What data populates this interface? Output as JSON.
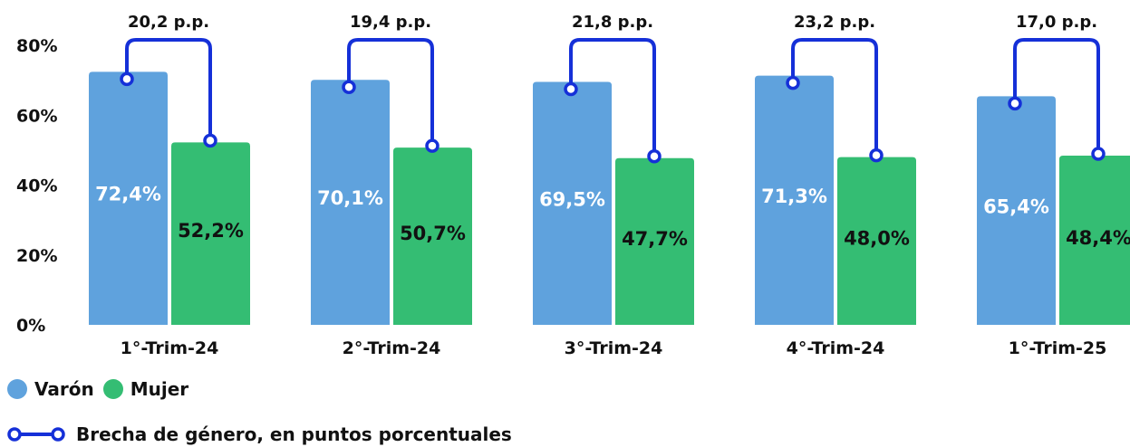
{
  "chart_data": {
    "type": "bar",
    "categories": [
      "1°-Trim-24",
      "2°-Trim-24",
      "3°-Trim-24",
      "4°-Trim-24",
      "1°-Trim-25"
    ],
    "series": [
      {
        "name": "Varón",
        "values": [
          72.4,
          70.1,
          69.5,
          71.3,
          65.4
        ],
        "labels": [
          "72,4%",
          "70,1%",
          "69,5%",
          "71,3%",
          "65,4%"
        ],
        "color": "#5fa2dd"
      },
      {
        "name": "Mujer",
        "values": [
          52.2,
          50.7,
          47.7,
          48.0,
          48.4
        ],
        "labels": [
          "52,2%",
          "50,7%",
          "47,7%",
          "48,0%",
          "48,4%"
        ],
        "color": "#34bd73"
      }
    ],
    "gap": {
      "name": "Brecha de género, en puntos porcentuales",
      "values": [
        20.2,
        19.4,
        21.8,
        23.2,
        17.0
      ],
      "labels": [
        "20,2 p.p.",
        "19,4 p.p.",
        "21,8 p.p.",
        "23,2 p.p.",
        "17,0 p.p."
      ],
      "color": "#1530d8"
    },
    "yticks": [
      "0%",
      "20%",
      "40%",
      "60%",
      "80%"
    ],
    "ylim": [
      0,
      80
    ],
    "title": "",
    "xlabel": "",
    "ylabel": "",
    "grid": false,
    "legend_position": "bottom-left"
  }
}
